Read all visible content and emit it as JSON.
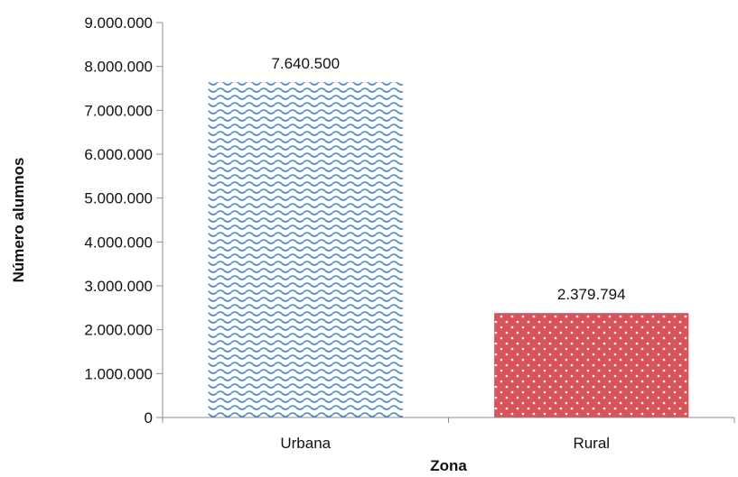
{
  "chart_data": {
    "type": "bar",
    "title": "",
    "xlabel": "Zona",
    "ylabel": "Número alumnos",
    "ylim": [
      0,
      9000000
    ],
    "ytick_values": [
      0,
      1000000,
      2000000,
      3000000,
      4000000,
      5000000,
      6000000,
      7000000,
      8000000,
      9000000
    ],
    "ytick_labels": [
      "0",
      "1.000.000",
      "2.000.000",
      "3.000.000",
      "4.000.000",
      "5.000.000",
      "6.000.000",
      "7.000.000",
      "8.000.000",
      "9.000.000"
    ],
    "categories": [
      "Urbana",
      "Rural"
    ],
    "values": [
      7640500,
      2379794
    ],
    "data_labels": [
      "7.640.500",
      "2.379.794"
    ],
    "colors": [
      "#4a86c8",
      "#d9535b"
    ],
    "patterns": [
      "wave",
      "dots"
    ],
    "grid": false,
    "legend": "none"
  }
}
